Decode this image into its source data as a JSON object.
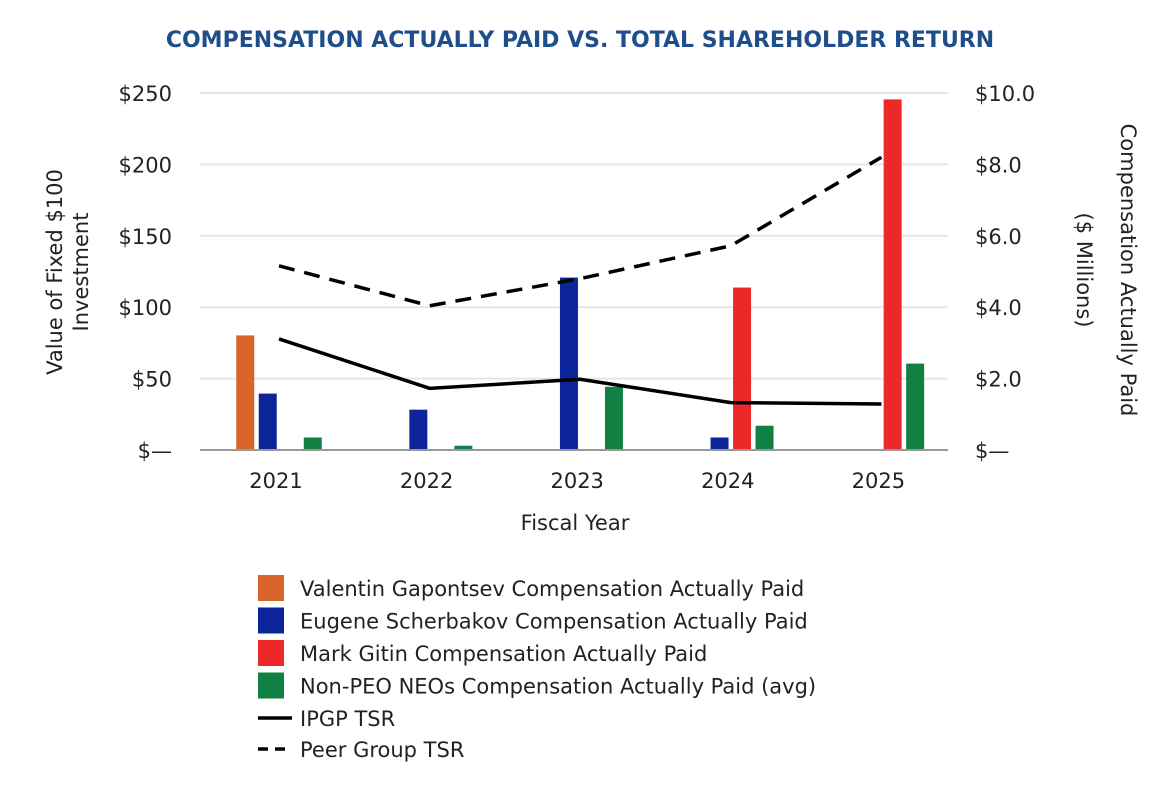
{
  "chart_data": {
    "type": "bar",
    "title": "COMPENSATION ACTUALLY PAID VS. TOTAL SHAREHOLDER RETURN",
    "xlabel": "Fiscal Year",
    "ylabel": "Value of Fixed $100 Investment",
    "ylabel_right": "Compensation Actually Paid ($ Millions)",
    "ylabel_lines": [
      "Value of Fixed $100",
      "Investment"
    ],
    "ylabel_right_lines": [
      "Compensation Actually Paid",
      "($ Millions)"
    ],
    "categories": [
      "2021",
      "2022",
      "2023",
      "2024",
      "2025"
    ],
    "ylim": [
      0,
      250
    ],
    "ylim_right": [
      0,
      10
    ],
    "yticks": [
      "$—",
      "$50",
      "$100",
      "$150",
      "$200",
      "$250"
    ],
    "yticks_right": [
      "$—",
      "$2.0",
      "$4.0",
      "$6.0",
      "$8.0",
      "$10.0"
    ],
    "grid": true,
    "legend_position": "bottom",
    "bar_series": [
      {
        "name": "Valentin Gapontsev Compensation Actually Paid",
        "color": "#d9652b",
        "axis": "right",
        "values": [
          3.21,
          null,
          null,
          null,
          null
        ]
      },
      {
        "name": "Eugene Scherbakov Compensation Actually Paid",
        "color": "#0c2599",
        "axis": "right",
        "values": [
          1.58,
          1.13,
          4.83,
          0.35,
          null
        ]
      },
      {
        "name": "Mark Gitin Compensation Actually Paid",
        "color": "#ec2828",
        "axis": "right",
        "values": [
          null,
          null,
          null,
          4.55,
          9.82
        ]
      },
      {
        "name": "Non-PEO NEOs Compensation Actually Paid (avg)",
        "color": "#118043",
        "axis": "right",
        "values": [
          0.35,
          0.12,
          1.77,
          0.68,
          2.42
        ]
      }
    ],
    "line_series": [
      {
        "name": "IPGP TSR",
        "color": "#000000",
        "dash": false,
        "axis": "left",
        "values": [
          77.8,
          43.2,
          49.5,
          33.2,
          32.2
        ]
      },
      {
        "name": "Peer Group TSR",
        "color": "#000000",
        "dash": true,
        "axis": "left",
        "values": [
          129,
          101,
          120,
          143,
          205
        ]
      }
    ],
    "title_color": "#1f4e8c"
  }
}
